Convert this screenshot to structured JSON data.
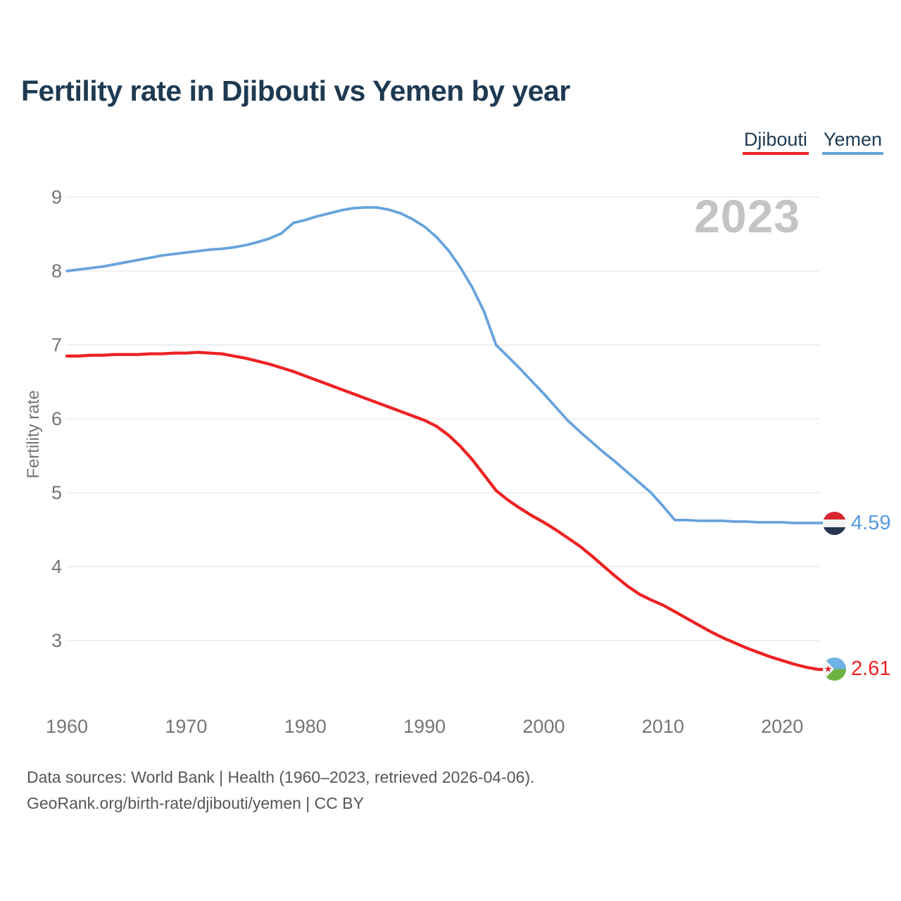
{
  "title": "Fertility rate in Djibouti vs Yemen by year",
  "legend": {
    "items": [
      {
        "label": "Djibouti",
        "color": "#ed2224"
      },
      {
        "label": "Yemen",
        "color": "#68a3dc"
      }
    ]
  },
  "watermark": "2023",
  "end_labels": {
    "yemen": {
      "value": "4.59",
      "color": "#549ade",
      "flag": "yemen-flag-icon"
    },
    "djibouti": {
      "value": "2.61",
      "color": "#ed2224",
      "flag": "djibouti-flag-icon"
    }
  },
  "footer": {
    "line1": "Data sources: World Bank | Health (1960–2023, retrieved 2026-04-06).",
    "line2": "GeoRank.org/birth-rate/djibouti/yemen | CC BY"
  },
  "colors": {
    "title_text": "#1e3a52",
    "axis_text": "#757575",
    "gridline": "#ececec",
    "watermark": "#c4c4c4",
    "djibouti_line": "#ed2224",
    "yemen_line": "#68a3dc",
    "yemen_flag_red": "#d8242f",
    "yemen_flag_white": "#f2f2f2",
    "yemen_flag_black": "#263551",
    "djibouti_flag_blue": "#6fb2e3",
    "djibouti_flag_green": "#6db344",
    "djibouti_flag_star": "#e21c23"
  },
  "chart_data": {
    "type": "line",
    "title": "Fertility rate in Djibouti vs Yemen by year",
    "xlabel": "",
    "ylabel": "Fertility rate",
    "ylim": [
      2.3,
      9.3
    ],
    "yticks": [
      9,
      8,
      7,
      6,
      5,
      4,
      3
    ],
    "xticks": [
      1960,
      1970,
      1980,
      1990,
      2000,
      2010,
      2020
    ],
    "grid": "horizontal",
    "legend_position": "top-right",
    "x": [
      1960,
      1961,
      1962,
      1963,
      1964,
      1965,
      1966,
      1967,
      1968,
      1969,
      1970,
      1971,
      1972,
      1973,
      1974,
      1975,
      1976,
      1977,
      1978,
      1979,
      1980,
      1981,
      1982,
      1983,
      1984,
      1985,
      1986,
      1987,
      1988,
      1989,
      1990,
      1991,
      1992,
      1993,
      1994,
      1995,
      1996,
      1997,
      1998,
      1999,
      2000,
      2001,
      2002,
      2003,
      2004,
      2005,
      2006,
      2007,
      2008,
      2009,
      2010,
      2011,
      2012,
      2013,
      2014,
      2015,
      2016,
      2017,
      2018,
      2019,
      2020,
      2021,
      2022,
      2023
    ],
    "series": [
      {
        "name": "Yemen",
        "color": "#68a3dc",
        "stroke_width": 3.8,
        "last_value_label": "4.59",
        "values": [
          8.0,
          8.02,
          8.04,
          8.06,
          8.09,
          8.12,
          8.15,
          8.18,
          8.21,
          8.23,
          8.25,
          8.27,
          8.29,
          8.3,
          8.32,
          8.35,
          8.39,
          8.44,
          8.51,
          8.65,
          8.69,
          8.74,
          8.78,
          8.82,
          8.85,
          8.86,
          8.86,
          8.83,
          8.78,
          8.7,
          8.6,
          8.46,
          8.28,
          8.05,
          7.78,
          7.45,
          7.0,
          6.84,
          6.68,
          6.51,
          6.34,
          6.16,
          5.98,
          5.83,
          5.69,
          5.55,
          5.42,
          5.28,
          5.14,
          5.0,
          4.82,
          4.63,
          4.63,
          4.62,
          4.62,
          4.62,
          4.61,
          4.61,
          4.6,
          4.6,
          4.6,
          4.59,
          4.59,
          4.59
        ]
      },
      {
        "name": "Djibouti",
        "color": "#ed2224",
        "stroke_width": 4.3,
        "last_value_label": "2.61",
        "values": [
          6.85,
          6.85,
          6.86,
          6.86,
          6.87,
          6.87,
          6.87,
          6.88,
          6.88,
          6.89,
          6.89,
          6.9,
          6.89,
          6.88,
          6.85,
          6.82,
          6.78,
          6.74,
          6.69,
          6.64,
          6.58,
          6.52,
          6.46,
          6.4,
          6.34,
          6.28,
          6.22,
          6.16,
          6.1,
          6.04,
          5.98,
          5.9,
          5.78,
          5.63,
          5.45,
          5.24,
          5.03,
          4.9,
          4.79,
          4.69,
          4.6,
          4.5,
          4.39,
          4.28,
          4.15,
          4.01,
          3.87,
          3.74,
          3.63,
          3.55,
          3.48,
          3.39,
          3.3,
          3.21,
          3.12,
          3.04,
          2.97,
          2.9,
          2.84,
          2.78,
          2.73,
          2.68,
          2.64,
          2.61
        ]
      }
    ]
  }
}
